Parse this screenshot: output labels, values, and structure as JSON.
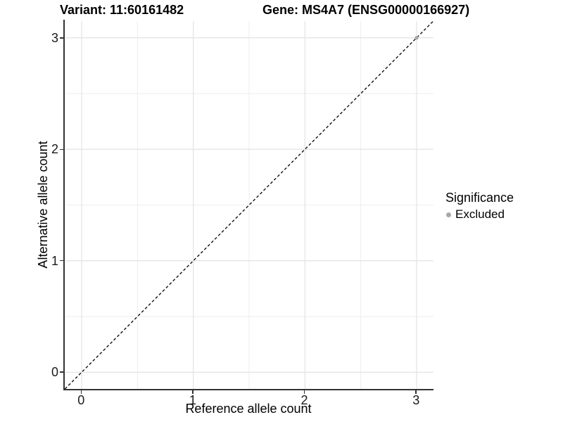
{
  "chart_data": {
    "type": "scatter",
    "titles": {
      "left": "Variant: 11:60161482",
      "right": "Gene: MS4A7 (ENSG00000166927)"
    },
    "xlabel": "Reference allele count",
    "ylabel": "Alternative allele count",
    "xlim": [
      -0.15,
      3.15
    ],
    "ylim": [
      -0.15,
      3.15
    ],
    "xticks": [
      0,
      1,
      2,
      3
    ],
    "yticks": [
      0,
      1,
      2,
      3
    ],
    "minor_xticks": [
      0.5,
      1.5,
      2.5
    ],
    "minor_yticks": [
      0.5,
      1.5,
      2.5
    ],
    "grid": true,
    "identity_line": {
      "style": "dashed",
      "slope": 1,
      "intercept": 0,
      "color": "#111111"
    },
    "points": [
      {
        "x": 3,
        "y": 3,
        "significance": "Excluded"
      }
    ],
    "legend": {
      "title": "Significance",
      "position": "right",
      "items": [
        {
          "label": "Excluded",
          "color": "#a8a8a8"
        }
      ]
    },
    "colors": {
      "point_excluded": "#a8a8a8",
      "grid_major": "#e3e3e3",
      "grid_minor": "#eeeeee",
      "axis_line": "#333333",
      "background": "#ffffff"
    }
  }
}
